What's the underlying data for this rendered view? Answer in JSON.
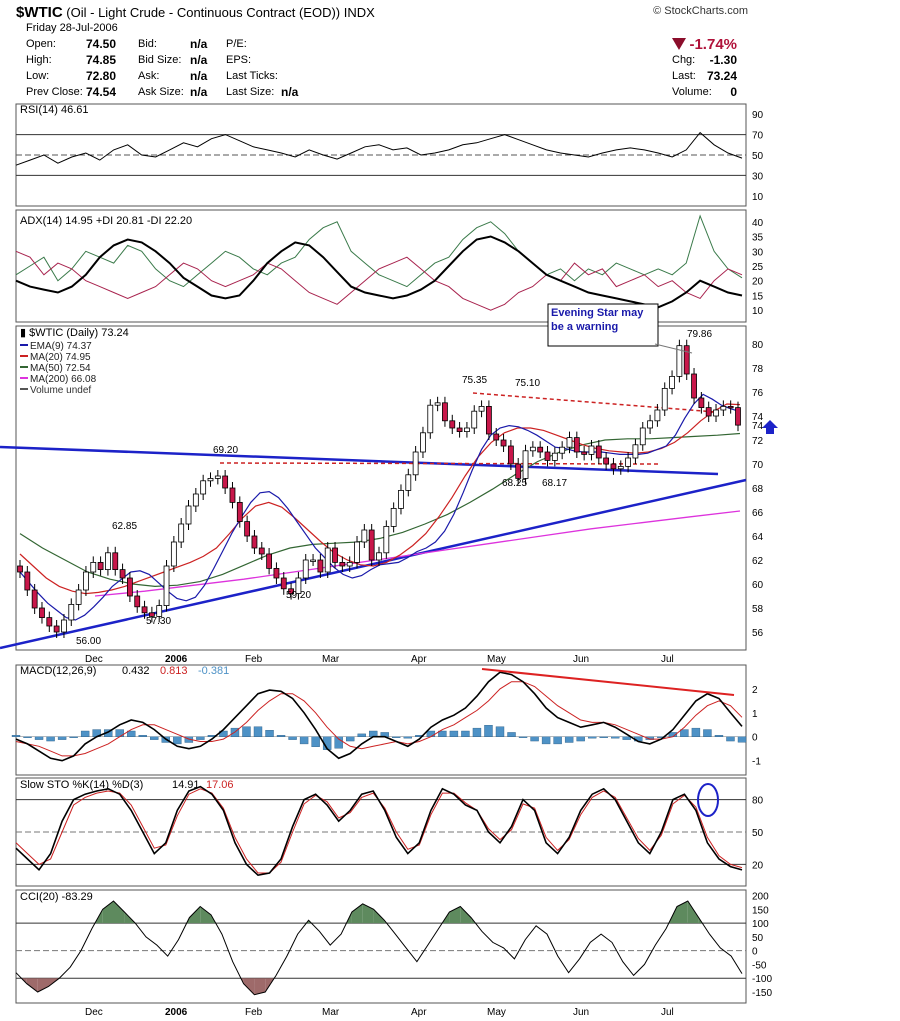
{
  "header": {
    "symbol": "$WTIC",
    "name": "(Oil - Light Crude - Continuous Contract (EOD))",
    "exchange": "INDX",
    "brand": "© StockCharts.com",
    "date": "Friday 28-Jul-2006",
    "open_label": "Open:",
    "open": "74.50",
    "high_label": "High:",
    "high": "74.85",
    "low_label": "Low:",
    "low": "72.80",
    "prev_label": "Prev Close:",
    "prev": "74.54",
    "bid_label": "Bid:",
    "bid": "n/a",
    "bidsize_label": "Bid Size:",
    "bidsize": "n/a",
    "ask_label": "Ask:",
    "ask": "n/a",
    "asksize_label": "Ask Size:",
    "asksize": "n/a",
    "pe_label": "P/E:",
    "eps_label": "EPS:",
    "lastticks_label": "Last Ticks:",
    "lastsize_label": "Last Size:",
    "lastsize": "n/a",
    "pct_change": "-1.74%",
    "chg_label": "Chg:",
    "chg": "-1.30",
    "last_label": "Last:",
    "last": "73.24",
    "volume_label": "Volume:",
    "volume": "0"
  },
  "colors": {
    "candle_up": "#ffffff",
    "candle_down": "#c8174a",
    "ema9": "#1a1aaa",
    "ma20": "#cc2222",
    "ma50": "#336633",
    "ma200": "#dd33dd",
    "trend": "#1c22c8",
    "resistance": "#cc2222",
    "di_plus": "#3a7a4a",
    "di_minus": "#a8234e",
    "macd_hist": "#4e92c6",
    "fill_pos": "#5e8a5e",
    "fill_neg": "#9e6a6a"
  },
  "chart_data": [
    {
      "type": "line",
      "panel": "RSI",
      "legend": "RSI(14) 46.61",
      "yticks": [
        90,
        70,
        50,
        30,
        10
      ],
      "ylim": [
        0,
        100
      ],
      "series": [
        {
          "name": "RSI(14)",
          "values": [
            40,
            45,
            50,
            42,
            48,
            52,
            45,
            55,
            60,
            50,
            48,
            55,
            62,
            58,
            66,
            70,
            64,
            58,
            55,
            52,
            48,
            55,
            50,
            46,
            52,
            58,
            60,
            55,
            57,
            50,
            52,
            55,
            60,
            62,
            66,
            70,
            65,
            60,
            55,
            52,
            50,
            48,
            52,
            55,
            57,
            55,
            52,
            48,
            55,
            72,
            60,
            52,
            47
          ]
        }
      ]
    },
    {
      "type": "line",
      "panel": "ADX",
      "legend": "ADX(14) 14.95 +DI 20.81 -DI 22.20",
      "yticks": [
        40,
        35,
        30,
        25,
        20,
        15,
        10
      ],
      "ylim": [
        6,
        44
      ],
      "series": [
        {
          "name": "ADX(14)",
          "values": [
            20,
            18,
            17,
            16,
            18,
            22,
            28,
            32,
            34,
            33,
            30,
            26,
            21,
            18,
            15,
            14,
            15,
            20,
            26,
            30,
            33,
            32,
            28,
            23,
            18,
            16,
            15,
            14,
            15,
            17,
            20,
            25,
            30,
            34,
            35,
            33,
            30,
            26,
            22,
            20,
            18,
            16,
            15,
            14,
            13,
            12,
            11,
            13,
            16,
            20,
            18,
            16,
            15
          ]
        },
        {
          "name": "+DI",
          "values": [
            22,
            25,
            28,
            20,
            24,
            30,
            28,
            26,
            32,
            30,
            24,
            20,
            18,
            22,
            26,
            30,
            28,
            24,
            22,
            26,
            28,
            34,
            38,
            40,
            30,
            26,
            22,
            20,
            18,
            22,
            26,
            28,
            34,
            38,
            40,
            36,
            30,
            26,
            22,
            24,
            20,
            24,
            22,
            26,
            24,
            22,
            24,
            22,
            26,
            42,
            30,
            24,
            21
          ]
        },
        {
          "name": "-DI",
          "values": [
            30,
            28,
            22,
            26,
            24,
            20,
            18,
            16,
            14,
            16,
            18,
            22,
            26,
            24,
            20,
            18,
            20,
            22,
            26,
            24,
            20,
            16,
            14,
            12,
            16,
            20,
            24,
            26,
            28,
            24,
            20,
            18,
            14,
            12,
            10,
            12,
            16,
            18,
            22,
            20,
            26,
            22,
            24,
            18,
            20,
            22,
            18,
            20,
            16,
            14,
            20,
            24,
            22
          ]
        }
      ]
    },
    {
      "type": "candlestick",
      "panel": "Price",
      "title": "$WTIC (Daily) 73.24",
      "legend": [
        "EMA(9) 74.37",
        "MA(20) 74.95",
        "MA(50) 72.54",
        "MA(200) 66.08",
        "Volume undef"
      ],
      "x_labels": [
        "Dec",
        "2006",
        "Feb",
        "Mar",
        "Apr",
        "May",
        "Jun",
        "Jul"
      ],
      "yticks": [
        80,
        78,
        76,
        74,
        72,
        70,
        68,
        66,
        64,
        62,
        60,
        58,
        56
      ],
      "ylim": [
        54.5,
        81.5
      ],
      "close": [
        61.0,
        59.5,
        58.0,
        57.2,
        56.5,
        56.0,
        57.0,
        58.3,
        59.5,
        61.0,
        61.8,
        61.2,
        62.6,
        61.2,
        60.5,
        59.0,
        58.1,
        57.6,
        57.3,
        58.2,
        61.5,
        63.5,
        65.0,
        66.5,
        67.5,
        68.6,
        68.8,
        69.0,
        68.0,
        66.8,
        65.2,
        64.0,
        63.0,
        62.5,
        61.3,
        60.5,
        59.6,
        59.2,
        60.5,
        62.0,
        62.0,
        61.0,
        63.0,
        61.8,
        61.5,
        61.8,
        63.5,
        64.5,
        62.0,
        62.6,
        64.8,
        66.3,
        67.8,
        69.1,
        71.0,
        72.6,
        74.9,
        75.1,
        73.6,
        73.0,
        72.7,
        73.0,
        74.4,
        74.8,
        72.5,
        72.0,
        71.5,
        70.0,
        68.8,
        71.1,
        71.4,
        71.0,
        70.3,
        70.9,
        71.4,
        72.2,
        71.0,
        70.8,
        71.5,
        70.5,
        70.0,
        69.6,
        69.8,
        70.5,
        71.6,
        73.0,
        73.6,
        74.5,
        76.3,
        77.3,
        79.86,
        77.5,
        75.5,
        74.7,
        74.0,
        74.5,
        74.8,
        74.7,
        73.24
      ],
      "ema9": [
        61.0,
        60.1,
        59.2,
        58.4,
        57.8,
        57.2,
        57.0,
        57.4,
        58.1,
        58.9,
        59.8,
        60.4,
        61.0,
        61.1,
        60.8,
        60.1,
        59.4,
        58.8,
        58.6,
        58.9,
        59.9,
        61.3,
        62.8,
        64.3,
        65.6,
        66.8,
        67.6,
        67.7,
        67.2,
        66.3,
        65.2,
        64.1,
        63.0,
        62.2,
        61.4,
        60.8,
        60.5,
        60.7,
        61.2,
        61.6,
        61.7,
        61.8,
        62.2,
        62.7,
        63.0,
        63.5,
        64.4,
        65.8,
        67.6,
        69.5,
        71.2,
        72.4,
        73.0,
        73.2,
        73.1,
        72.8,
        72.4,
        71.9,
        71.4,
        71.3,
        71.1,
        71.0,
        71.0,
        71.0,
        70.9,
        70.8,
        70.8,
        70.8,
        70.9,
        71.2,
        71.5,
        72.4,
        73.8,
        75.0,
        75.8,
        75.4,
        74.9,
        74.6,
        74.37
      ],
      "ma20": [
        62.5,
        61.5,
        60.5,
        59.8,
        59.4,
        59.2,
        59.3,
        59.5,
        59.8,
        60.2,
        60.6,
        61.0,
        61.4,
        61.8,
        62.3,
        63.0,
        64.2,
        65.5,
        66.5,
        66.8,
        66.4,
        65.5,
        64.5,
        63.5,
        62.6,
        62.0,
        61.6,
        61.5,
        61.8,
        62.4,
        63.2,
        64.2,
        65.6,
        67.2,
        69.0,
        70.6,
        71.8,
        72.6,
        73.0,
        73.0,
        72.8,
        72.4,
        72.0,
        71.6,
        71.3,
        71.1,
        71.0,
        70.9,
        71.0,
        71.3,
        71.8,
        72.6,
        73.6,
        74.4,
        75.0,
        74.95
      ],
      "ma50": [
        64.2,
        63.0,
        62.0,
        61.0,
        60.4,
        60.0,
        59.8,
        59.9,
        60.2,
        60.8,
        61.6,
        62.4,
        63.0,
        63.3,
        63.4,
        63.5,
        63.8,
        64.3,
        65.0,
        65.8,
        66.8,
        67.9,
        69.1,
        70.2,
        71.0,
        71.6,
        72.0,
        72.1,
        72.1,
        72.2,
        72.3,
        72.4,
        72.54
      ],
      "ma200": [
        59.0,
        59.4,
        59.9,
        60.4,
        61.0,
        61.6,
        62.2,
        62.8,
        63.4,
        64.0,
        64.6,
        65.1,
        65.6,
        66.08
      ],
      "annotations": [
        "56.00",
        "57.30",
        "62.85",
        "69.20",
        "59.20",
        "75.35",
        "75.10",
        "68.25",
        "68.17",
        "79.86",
        "Evening Star may be a warning"
      ]
    },
    {
      "type": "line",
      "panel": "MACD",
      "legend_label": "MACD(12,26,9)",
      "legend_macd": "0.432",
      "legend_signal": "0.813",
      "legend_hist": "-0.381",
      "yticks": [
        2,
        1,
        0,
        -1
      ],
      "ylim": [
        -1.6,
        3.0
      ],
      "series": [
        {
          "name": "MACD",
          "values": [
            -0.1,
            -0.3,
            -0.6,
            -0.9,
            -1.0,
            -0.8,
            -0.3,
            0.0,
            0.2,
            0.5,
            0.7,
            0.6,
            0.3,
            -0.1,
            -0.4,
            -0.5,
            -0.4,
            -0.1,
            0.3,
            0.8,
            1.3,
            1.8,
            1.95,
            1.9,
            1.6,
            1.0,
            0.3,
            -0.5,
            -0.9,
            -0.7,
            -0.3,
            0.0,
            0.0,
            -0.2,
            -0.4,
            -0.1,
            0.4,
            0.7,
            0.9,
            1.2,
            1.7,
            2.3,
            2.7,
            2.6,
            2.3,
            1.8,
            1.2,
            0.8,
            0.6,
            0.4,
            0.5,
            0.6,
            0.4,
            0.1,
            -0.2,
            -0.3,
            -0.1,
            0.3,
            0.9,
            1.5,
            1.8,
            1.6,
            1.0,
            0.432
          ]
        },
        {
          "name": "Signal",
          "values": [
            -0.2,
            -0.3,
            -0.4,
            -0.6,
            -0.8,
            -0.8,
            -0.7,
            -0.5,
            -0.3,
            0.0,
            0.3,
            0.5,
            0.5,
            0.3,
            0.1,
            -0.1,
            -0.2,
            -0.2,
            -0.1,
            0.2,
            0.6,
            1.1,
            1.5,
            1.8,
            1.8,
            1.5,
            1.0,
            0.4,
            -0.1,
            -0.4,
            -0.5,
            -0.4,
            -0.3,
            -0.2,
            -0.3,
            -0.2,
            0.0,
            0.3,
            0.5,
            0.8,
            1.1,
            1.5,
            2.0,
            2.3,
            2.3,
            2.1,
            1.7,
            1.3,
            1.0,
            0.7,
            0.6,
            0.6,
            0.5,
            0.3,
            0.1,
            -0.1,
            -0.1,
            0.0,
            0.4,
            0.9,
            1.3,
            1.5,
            1.3,
            0.813
          ]
        }
      ]
    },
    {
      "type": "line",
      "panel": "Slow STO",
      "legend_label": "Slow STO %K(14) %D(3)",
      "legend_k": "14.91",
      "legend_d": "17.06",
      "yticks": [
        80,
        50,
        20
      ],
      "ylim": [
        0,
        100
      ],
      "series": [
        {
          "name": "%K",
          "values": [
            35,
            25,
            15,
            30,
            60,
            80,
            85,
            88,
            90,
            85,
            70,
            50,
            30,
            40,
            70,
            88,
            92,
            85,
            70,
            40,
            20,
            10,
            12,
            25,
            55,
            80,
            85,
            75,
            60,
            70,
            85,
            88,
            70,
            45,
            30,
            40,
            70,
            90,
            85,
            75,
            70,
            50,
            40,
            55,
            80,
            70,
            40,
            30,
            45,
            70,
            85,
            90,
            80,
            60,
            40,
            30,
            50,
            80,
            85,
            70,
            40,
            25,
            18,
            14.91
          ]
        },
        {
          "name": "%D",
          "values": [
            40,
            30,
            20,
            25,
            50,
            75,
            82,
            86,
            88,
            86,
            75,
            55,
            35,
            38,
            65,
            85,
            90,
            86,
            72,
            45,
            25,
            12,
            12,
            22,
            50,
            76,
            84,
            78,
            63,
            68,
            82,
            86,
            72,
            50,
            34,
            38,
            66,
            86,
            86,
            77,
            70,
            53,
            43,
            52,
            76,
            72,
            45,
            33,
            43,
            66,
            82,
            88,
            82,
            63,
            44,
            33,
            47,
            76,
            84,
            73,
            45,
            28,
            20,
            17.06
          ]
        }
      ]
    },
    {
      "type": "area",
      "panel": "CCI",
      "legend": "CCI(20) -83.29",
      "yticks": [
        200,
        150,
        100,
        50,
        0,
        -50,
        -100,
        -150
      ],
      "ylim": [
        -190,
        220
      ],
      "series": [
        {
          "name": "CCI(20)",
          "values": [
            -80,
            -120,
            -150,
            -130,
            -100,
            -60,
            0,
            80,
            150,
            180,
            140,
            100,
            50,
            20,
            -20,
            40,
            120,
            160,
            130,
            60,
            -40,
            -120,
            -160,
            -150,
            -90,
            -20,
            60,
            110,
            70,
            20,
            60,
            140,
            170,
            150,
            110,
            60,
            10,
            -40,
            20,
            80,
            140,
            160,
            120,
            70,
            30,
            10,
            -30,
            40,
            90,
            60,
            -20,
            -80,
            -30,
            30,
            60,
            30,
            -40,
            -90,
            -50,
            20,
            80,
            160,
            180,
            120,
            60,
            10,
            -20,
            -83.29
          ]
        }
      ]
    }
  ]
}
